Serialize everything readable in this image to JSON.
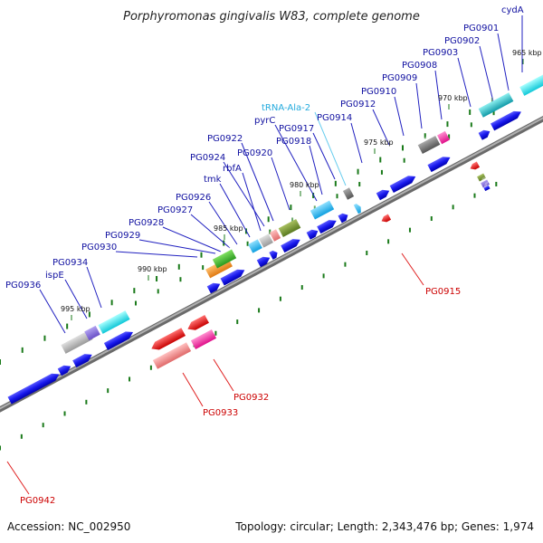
{
  "title": "Porphyromonas gingivalis W83, complete genome",
  "accession": "Accession: NC_002950",
  "topology": "Topology: circular; Length: 2,343,476 bp; Genes: 1,974",
  "colors": {
    "forward_gene": "#0000ee",
    "reverse_gene": "#ee0000",
    "backbone": "#888888",
    "tick": "#1a7a1a",
    "label_forward": "#1010a0",
    "label_reverse": "#cc0000",
    "label_rna": "#22aadd"
  },
  "scale_labels": [
    "965 kbp",
    "970 kbp",
    "975 kbp",
    "980 kbp",
    "985 kbp",
    "990 kbp",
    "995 kbp"
  ],
  "forward_labels": [
    "cydA",
    "PG0901",
    "PG0902",
    "PG0903",
    "PG0908",
    "PG0909",
    "PG0910",
    "PG0912",
    "PG0914",
    "tRNA-Ala-2",
    "PG0917",
    "PG0918",
    "pyrC",
    "PG0920",
    "PG0922",
    "PG0924",
    "rbfA",
    "tmk",
    "PG0926",
    "PG0927",
    "PG0928",
    "PG0929",
    "PG0930",
    "PG0934",
    "ispE",
    "PG0936"
  ],
  "reverse_labels": [
    "PG0915",
    "PG0932",
    "PG0933",
    "PG0942"
  ]
}
